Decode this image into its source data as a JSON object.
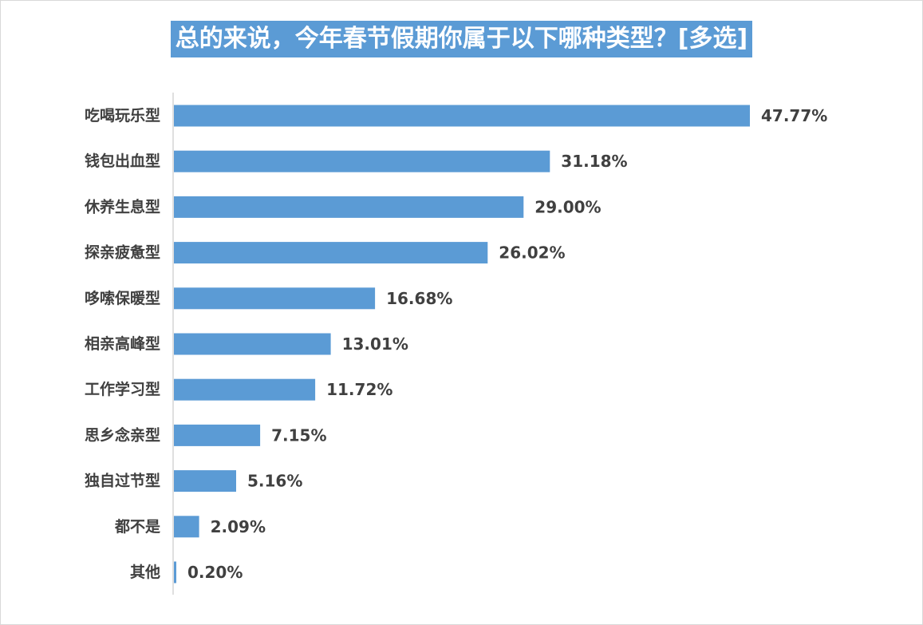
{
  "chart_data": {
    "type": "bar",
    "orientation": "horizontal",
    "title": "总的来说，今年春节假期你属于以下哪种类型？[多选]",
    "categories": [
      "吃喝玩乐型",
      "钱包出血型",
      "休养生息型",
      "探亲疲惫型",
      "哆嗦保暖型",
      "相亲高峰型",
      "工作学习型",
      "思乡念亲型",
      "独自过节型",
      "都不是",
      "其他"
    ],
    "values": [
      47.77,
      31.18,
      29.0,
      26.02,
      16.68,
      13.01,
      11.72,
      7.15,
      5.16,
      2.09,
      0.2
    ],
    "value_labels": [
      "47.77%",
      "31.18%",
      "29.00%",
      "26.02%",
      "16.68%",
      "13.01%",
      "11.72%",
      "7.15%",
      "5.16%",
      "2.09%",
      "0.20%"
    ],
    "unit": "%",
    "xlim": [
      0,
      47.77
    ],
    "grid": false,
    "legend": "none",
    "bar_color": "#5b9bd5",
    "title_bg_color": "#5b9bd5"
  }
}
